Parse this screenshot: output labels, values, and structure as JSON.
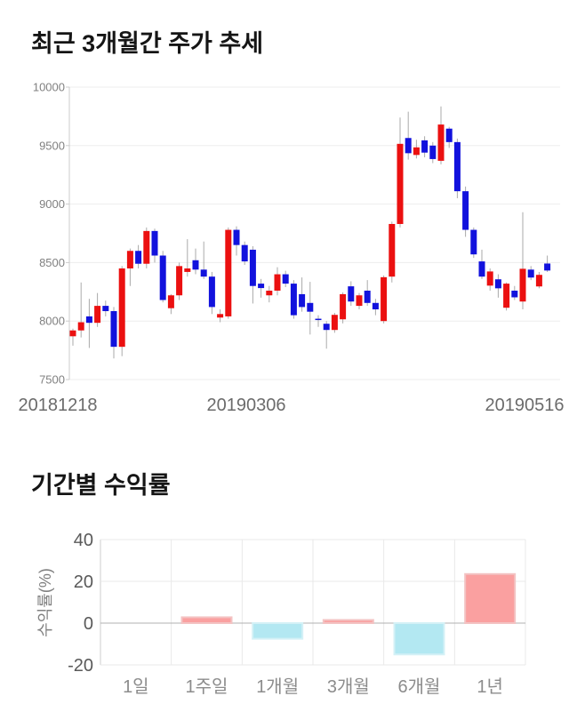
{
  "page": {
    "background": "#ffffff"
  },
  "chart_data": [
    {
      "type": "candlestick",
      "title": "최근 3개월간 주가 추세",
      "xlabel": "",
      "ylabel": "",
      "x_tick_labels": [
        "20181218",
        "20190306",
        "20190516"
      ],
      "y_ticks": [
        10000,
        9500,
        9000,
        8500,
        8000,
        7500
      ],
      "ylim": [
        7500,
        10000
      ],
      "grid": true,
      "legend": "none",
      "colors": {
        "up": "#eb1010",
        "down": "#1212dd",
        "wick": "#aaaaaa",
        "grid": "#ededed",
        "axis": "#cccccc",
        "y_tick_label": "#808080",
        "x_tick_label": "#6b6b6b"
      },
      "candles_format": [
        "open",
        "high",
        "low",
        "close"
      ],
      "candles": [
        [
          7870,
          7935,
          7790,
          7920
        ],
        [
          7920,
          8330,
          7860,
          7990
        ],
        [
          8040,
          8190,
          7770,
          7985
        ],
        [
          7985,
          8240,
          7950,
          8130
        ],
        [
          8130,
          8175,
          8040,
          8085
        ],
        [
          8085,
          8120,
          7680,
          7780
        ],
        [
          7780,
          8470,
          7700,
          8450
        ],
        [
          8450,
          8620,
          8300,
          8600
        ],
        [
          8600,
          8650,
          8450,
          8490
        ],
        [
          8490,
          8800,
          8450,
          8770
        ],
        [
          8770,
          8790,
          8500,
          8560
        ],
        [
          8560,
          8600,
          8160,
          8180
        ],
        [
          8110,
          8230,
          8060,
          8220
        ],
        [
          8220,
          8500,
          8180,
          8470
        ],
        [
          8420,
          8700,
          8380,
          8450
        ],
        [
          8520,
          8620,
          8400,
          8440
        ],
        [
          8440,
          8680,
          8360,
          8380
        ],
        [
          8380,
          8420,
          8060,
          8120
        ],
        [
          8030,
          8100,
          7990,
          8060
        ],
        [
          8040,
          8800,
          8020,
          8780
        ],
        [
          8780,
          8810,
          8560,
          8650
        ],
        [
          8650,
          8680,
          8480,
          8510
        ],
        [
          8610,
          8640,
          8150,
          8300
        ],
        [
          8320,
          8360,
          8200,
          8282
        ],
        [
          8220,
          8300,
          8160,
          8260
        ],
        [
          8260,
          8460,
          8220,
          8400
        ],
        [
          8400,
          8430,
          8290,
          8320
        ],
        [
          8320,
          8350,
          8020,
          8050
        ],
        [
          8230,
          8373,
          8080,
          8120
        ],
        [
          8155,
          8335,
          7885,
          8080
        ],
        [
          8020,
          8050,
          7950,
          8010
        ],
        [
          7977,
          8000,
          7764,
          7924
        ],
        [
          7924,
          8070,
          7900,
          8053
        ],
        [
          8015,
          8245,
          7980,
          8230
        ],
        [
          8297,
          8340,
          8130,
          8167
        ],
        [
          8130,
          8240,
          8100,
          8220
        ],
        [
          8260,
          8350,
          8130,
          8155
        ],
        [
          8155,
          8190,
          8050,
          8100
        ],
        [
          8000,
          8390,
          7980,
          8375
        ],
        [
          8380,
          8850,
          8330,
          8830
        ],
        [
          8830,
          9740,
          8800,
          9515
        ],
        [
          9565,
          9790,
          9380,
          9435
        ],
        [
          9420,
          9550,
          9390,
          9485
        ],
        [
          9545,
          9580,
          9400,
          9440
        ],
        [
          9500,
          9530,
          9350,
          9385
        ],
        [
          9370,
          9835,
          9340,
          9680
        ],
        [
          9645,
          9660,
          9480,
          9530
        ],
        [
          9530,
          9560,
          9050,
          9110
        ],
        [
          9110,
          9150,
          8720,
          8780
        ],
        [
          8780,
          8800,
          8540,
          8570
        ],
        [
          8510,
          8610,
          8360,
          8380
        ],
        [
          8303,
          8450,
          8260,
          8424
        ],
        [
          8357,
          8400,
          8200,
          8280
        ],
        [
          8114,
          8330,
          8090,
          8320
        ],
        [
          8260,
          8300,
          8180,
          8203
        ],
        [
          8167,
          8930,
          8100,
          8447
        ],
        [
          8440,
          8470,
          8350,
          8372
        ],
        [
          8296,
          8420,
          8280,
          8395
        ],
        [
          8492,
          8560,
          8420,
          8432
        ]
      ]
    },
    {
      "type": "bar",
      "title": "기간별 수익률",
      "xlabel": "",
      "ylabel": "수익률(%)",
      "categories": [
        "1일",
        "1주일",
        "1개월",
        "3개월",
        "6개월",
        "1년"
      ],
      "values": [
        0,
        2.8,
        -7.5,
        1.5,
        -15,
        23.5
      ],
      "y_ticks": [
        40,
        20,
        0,
        -20
      ],
      "ylim": [
        -20,
        40
      ],
      "grid": true,
      "legend": "none",
      "colors": {
        "positive": "#faa0a0",
        "positive_border": "#f3c3c3",
        "negative": "#b3e8f2",
        "negative_border": "#d4f1f6",
        "grid": "#e9e9e9",
        "zero_line": "#b0b0b0",
        "axis": "#cccccc",
        "y_tick_label": "#595959",
        "category_label": "#8c8c8c",
        "axis_title": "#808080"
      }
    }
  ]
}
